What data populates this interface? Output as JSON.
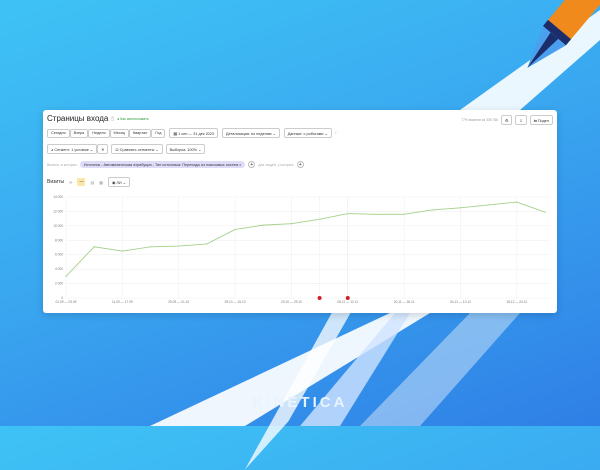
{
  "header": {
    "title": "Страницы входа",
    "how_to_use": "Как использовать",
    "visitors_note": "77% визитов из 335 756",
    "share_label": "Подел"
  },
  "periods": [
    "Сегодня",
    "Вчера",
    "Неделя",
    "Месяц",
    "Квартал",
    "Год"
  ],
  "date_range": "1 сен — 31 дек 2023",
  "detail": "Детализация: по неделям",
  "data_mode": "Данные: с роботами",
  "segment": "Сегмент: 1 условие",
  "compare": "Сравнить сегменты",
  "sample": "Выборка: 100%",
  "filter": {
    "visits_label": "Визиты, в которых",
    "chip": "Источник - Автоматическая атрибуция - Тип источника: Переходы из поисковых систем",
    "people_label": "для людей, у которых"
  },
  "chart_header": {
    "metric": "Визиты",
    "scale": "ЛИ"
  },
  "chart_data": {
    "type": "line",
    "color": "#a6d08a",
    "ylim": [
      0,
      14000
    ],
    "y_ticks": [
      0,
      2000,
      4000,
      6000,
      8000,
      10000,
      12000,
      14000
    ],
    "y_tick_labels": [
      "0",
      "2 000",
      "4 000",
      "6 000",
      "8 000",
      "10 000",
      "12 000",
      "14 000"
    ],
    "x_tick_labels": [
      "01.09 — 03.09",
      "11.09 — 17.09",
      "25.09 — 01.10",
      "09.10 — 15.10",
      "23.10 — 29.10",
      "06.11 — 12.11",
      "20.11 — 26.11",
      "04.12 — 10.12",
      "18.12 — 24.12"
    ],
    "values": [
      3000,
      7100,
      6500,
      7100,
      7200,
      7500,
      9500,
      10100,
      10300,
      10900,
      11700,
      11600,
      11600,
      12200,
      12500,
      12900,
      13300,
      11900
    ],
    "annotations_at_index": [
      9,
      10
    ],
    "grid": true
  },
  "brand": "KINETICA"
}
